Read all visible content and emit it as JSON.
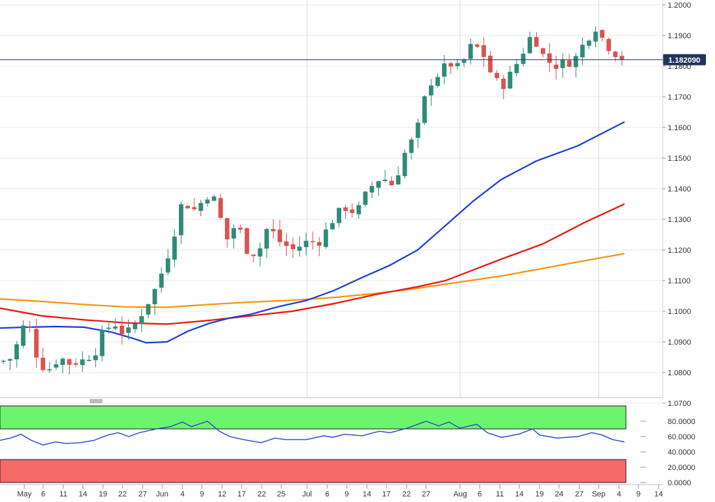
{
  "colors": {
    "bull": "#2e8b78",
    "bear": "#d9534f",
    "sma_fast": "#1e3ed6",
    "sma_mid": "#e8180f",
    "sma_slow": "#f7940f",
    "rsi_line": "#2a4bd0",
    "price_line": "#1e3560",
    "overbought_band": "#6cf56c",
    "oversold_band": "#f76a6a",
    "grid": "#e5e9ee"
  },
  "chart_data": [
    {
      "type": "candlestick",
      "title": "",
      "xlabel": "",
      "ylabel": "",
      "ylim": [
        1.065,
        1.2005
      ],
      "y_ticks": [
        "1.2000",
        "1.1900",
        "1.1800",
        "1.1700",
        "1.1600",
        "1.1500",
        "1.1400",
        "1.1300",
        "1.1200",
        "1.1100",
        "1.1000",
        "1.0900",
        "1.0800",
        "1.0700"
      ],
      "last_price": "1.182090",
      "overlays": [
        {
          "indicator": "SMA",
          "color": "sma_fast",
          "end_value": 1.162
        },
        {
          "indicator": "SMA",
          "color": "sma_mid",
          "end_value": 1.135
        },
        {
          "indicator": "SMA",
          "color": "sma_slow",
          "end_value": 1.119
        }
      ]
    },
    {
      "type": "line",
      "title": "",
      "ylim": [
        0,
        100
      ],
      "y_ticks": [
        "80.0000",
        "60.0000",
        "40.0000",
        "20.0000",
        "0.0000"
      ],
      "bands": [
        {
          "from": 70,
          "to": 100,
          "color": "overbought_band"
        },
        {
          "from": 0,
          "to": 30,
          "color": "oversold_band"
        }
      ],
      "last_value": 53
    }
  ],
  "x_ticks": [
    "May",
    "6",
    "11",
    "14",
    "19",
    "22",
    "27",
    "Jun",
    "4",
    "9",
    "12",
    "17",
    "22",
    "25",
    "Jul",
    "6",
    "9",
    "14",
    "17",
    "22",
    "27",
    "Aug",
    "6",
    "11",
    "14",
    "19",
    "24",
    "27",
    "Sep",
    "4",
    "9",
    "14"
  ]
}
